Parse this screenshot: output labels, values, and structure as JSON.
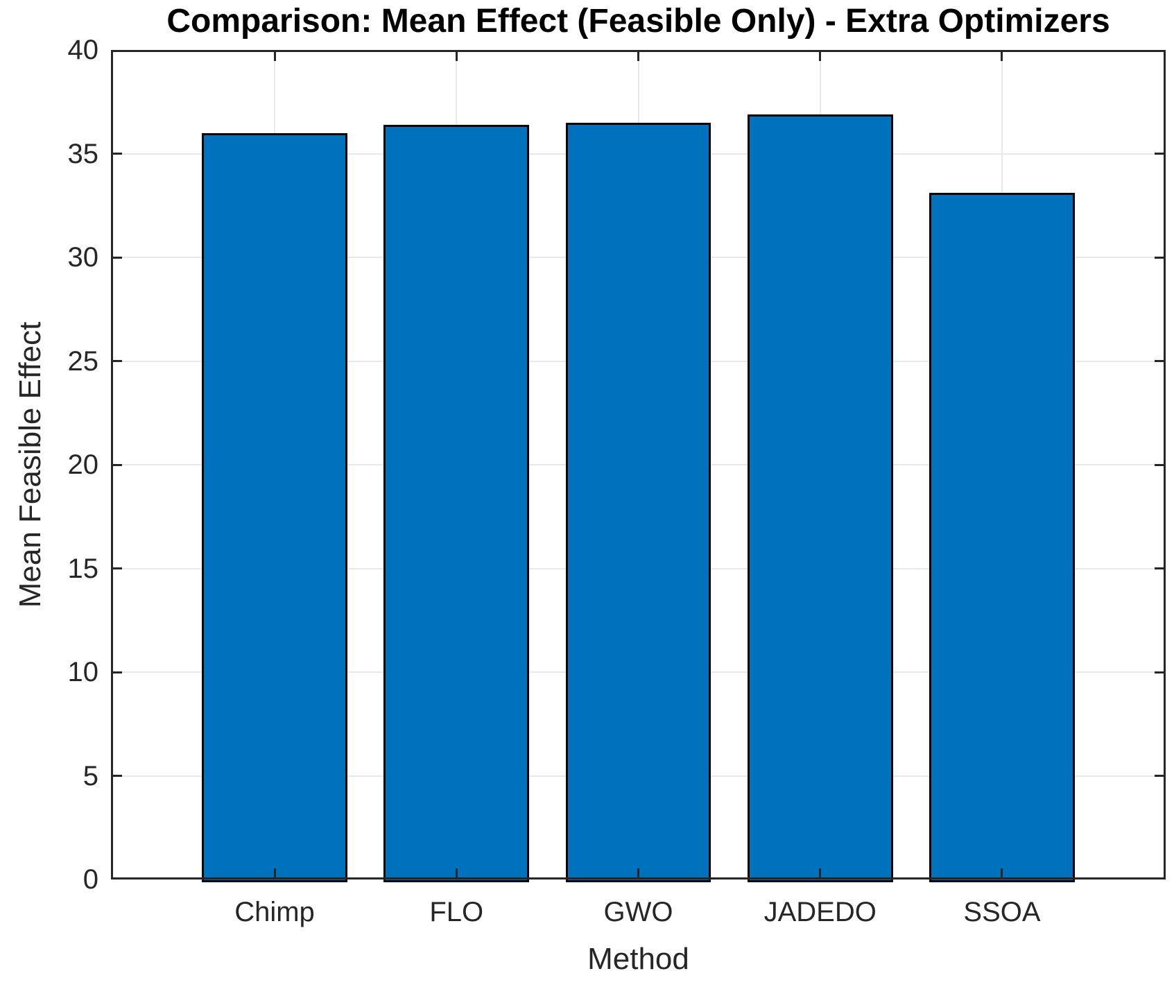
{
  "figure": {
    "type": "matlab-style-bar-figure",
    "background": "#ffffff"
  },
  "chart_data": {
    "type": "bar",
    "title": "Comparison: Mean Effect (Feasible Only) - Extra Optimizers",
    "xlabel": "Method",
    "ylabel": "Mean Feasible Effect",
    "categories": [
      "Chimp",
      "FLO",
      "GWO",
      "JADEDO",
      "SSOA"
    ],
    "values": [
      36.0,
      36.4,
      36.5,
      36.9,
      33.1
    ],
    "ylim": [
      0,
      40
    ],
    "yticks": [
      0,
      5,
      10,
      15,
      20,
      25,
      30,
      35,
      40
    ],
    "grid": true,
    "legend_position": "none",
    "bar_fill_color": "#0072BD",
    "bar_edge_color": "#000000",
    "axis_color": "#262626",
    "grid_color": "#e8e8e8",
    "tick_label_color": "#262626",
    "title_color": "#000000"
  }
}
